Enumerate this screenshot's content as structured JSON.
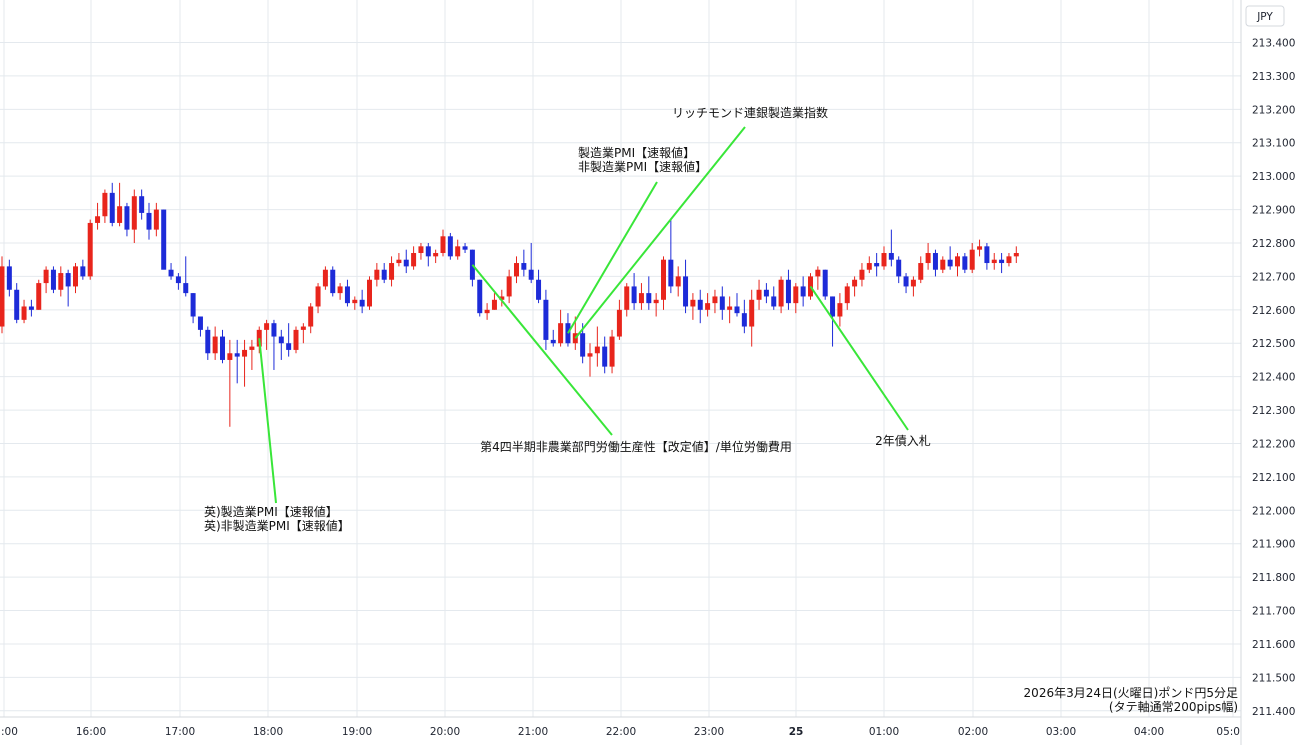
{
  "chart_data": {
    "type": "candlestick",
    "interval": "5分足",
    "currency_label": "JPY",
    "footer_lines": [
      "2026年3月24日(火曜日)ポンド円5分足",
      "(タテ軸通常200pips幅)"
    ],
    "ylim": [
      211.4,
      213.45
    ],
    "y_ticks": [
      "213.400",
      "213.300",
      "213.200",
      "213.100",
      "213.000",
      "212.900",
      "212.800",
      "212.700",
      "212.600",
      "212.500",
      "212.400",
      "212.300",
      "212.200",
      "212.100",
      "212.000",
      "211.900",
      "211.800",
      "211.700",
      "211.600",
      "211.500",
      "211.400"
    ],
    "x_ticks": [
      ":00",
      "16:00",
      "17:00",
      "18:00",
      "19:00",
      "20:00",
      "21:00",
      "22:00",
      "23:00",
      "25",
      "01:00",
      "02:00",
      "03:00",
      "04:00",
      "05:0"
    ],
    "bull_color": "#e8251c",
    "bear_color": "#1d2bd8",
    "grid_color": "#e4e9ee",
    "annotation_color": "#39e639",
    "grid": true,
    "annotations": [
      {
        "lines": [
          "英)製造業PMI【速報値】",
          "英)非製造業PMI【速報値】"
        ],
        "at_candle": 35
      },
      {
        "lines": [
          "第4四半期非農業部門労働生産性【改定値】/単位労働費用"
        ],
        "at_candle": 64
      },
      {
        "lines": [
          "製造業PMI【速報値】",
          "非製造業PMI【速報値】"
        ],
        "at_candle": 77
      },
      {
        "lines": [
          "リッチモンド連銀製造業指数"
        ],
        "at_candle": 78
      },
      {
        "lines": [
          "2年債入札"
        ],
        "at_candle": 110
      }
    ],
    "candles_ohlc": [
      [
        212.55,
        212.76,
        212.53,
        212.73
      ],
      [
        212.73,
        212.75,
        212.64,
        212.66
      ],
      [
        212.66,
        212.68,
        212.56,
        212.57
      ],
      [
        212.57,
        212.63,
        212.56,
        212.61
      ],
      [
        212.61,
        212.63,
        212.58,
        212.6
      ],
      [
        212.6,
        212.69,
        212.6,
        212.68
      ],
      [
        212.68,
        212.73,
        212.65,
        212.72
      ],
      [
        212.72,
        212.73,
        212.65,
        212.66
      ],
      [
        212.66,
        212.73,
        212.64,
        212.71
      ],
      [
        212.71,
        212.72,
        212.61,
        212.67
      ],
      [
        212.67,
        212.74,
        212.65,
        212.73
      ],
      [
        212.73,
        212.75,
        212.69,
        212.7
      ],
      [
        212.7,
        212.87,
        212.69,
        212.86
      ],
      [
        212.86,
        212.92,
        212.84,
        212.88
      ],
      [
        212.88,
        212.96,
        212.86,
        212.95
      ],
      [
        212.95,
        212.98,
        212.85,
        212.86
      ],
      [
        212.86,
        212.98,
        212.85,
        212.91
      ],
      [
        212.91,
        212.92,
        212.82,
        212.84
      ],
      [
        212.84,
        212.96,
        212.8,
        212.94
      ],
      [
        212.94,
        212.96,
        212.87,
        212.89
      ],
      [
        212.89,
        212.92,
        212.81,
        212.84
      ],
      [
        212.84,
        212.92,
        212.82,
        212.9
      ],
      [
        212.9,
        212.9,
        212.73,
        212.72
      ],
      [
        212.72,
        212.74,
        212.69,
        212.7
      ],
      [
        212.7,
        212.71,
        212.66,
        212.68
      ],
      [
        212.68,
        212.76,
        212.64,
        212.65
      ],
      [
        212.65,
        212.65,
        212.56,
        212.58
      ],
      [
        212.58,
        212.58,
        212.52,
        212.54
      ],
      [
        212.54,
        212.55,
        212.45,
        212.47
      ],
      [
        212.47,
        212.55,
        212.45,
        212.52
      ],
      [
        212.52,
        212.54,
        212.44,
        212.45
      ],
      [
        212.45,
        212.51,
        212.25,
        212.47
      ],
      [
        212.47,
        212.51,
        212.38,
        212.46
      ],
      [
        212.46,
        212.51,
        212.37,
        212.48
      ],
      [
        212.48,
        212.51,
        212.42,
        212.49
      ],
      [
        212.49,
        212.55,
        212.47,
        212.54
      ],
      [
        212.54,
        212.57,
        212.48,
        212.56
      ],
      [
        212.56,
        212.57,
        212.42,
        212.52
      ],
      [
        212.52,
        212.54,
        212.45,
        212.5
      ],
      [
        212.5,
        212.56,
        212.46,
        212.48
      ],
      [
        212.48,
        212.55,
        212.47,
        212.54
      ],
      [
        212.54,
        212.56,
        212.5,
        212.55
      ],
      [
        212.55,
        212.62,
        212.53,
        212.61
      ],
      [
        212.61,
        212.68,
        212.59,
        212.67
      ],
      [
        212.67,
        212.73,
        212.66,
        212.72
      ],
      [
        212.72,
        212.73,
        212.64,
        212.65
      ],
      [
        212.65,
        212.68,
        212.63,
        212.67
      ],
      [
        212.67,
        212.69,
        212.61,
        212.62
      ],
      [
        212.62,
        212.64,
        212.6,
        212.63
      ],
      [
        212.63,
        212.66,
        212.59,
        212.61
      ],
      [
        212.61,
        212.7,
        212.6,
        212.69
      ],
      [
        212.69,
        212.74,
        212.67,
        212.72
      ],
      [
        212.72,
        212.74,
        212.68,
        212.69
      ],
      [
        212.69,
        212.76,
        212.67,
        212.74
      ],
      [
        212.74,
        212.77,
        212.73,
        212.75
      ],
      [
        212.75,
        212.78,
        212.71,
        212.73
      ],
      [
        212.73,
        212.79,
        212.72,
        212.77
      ],
      [
        212.77,
        212.8,
        212.75,
        212.79
      ],
      [
        212.79,
        212.8,
        212.73,
        212.76
      ],
      [
        212.76,
        212.78,
        212.74,
        212.77
      ],
      [
        212.77,
        212.84,
        212.76,
        212.82
      ],
      [
        212.82,
        212.83,
        212.75,
        212.76
      ],
      [
        212.76,
        212.81,
        212.75,
        212.79
      ],
      [
        212.79,
        212.8,
        212.77,
        212.78
      ],
      [
        212.78,
        212.78,
        212.67,
        212.69
      ],
      [
        212.69,
        212.69,
        212.58,
        212.59
      ],
      [
        212.59,
        212.62,
        212.57,
        212.6
      ],
      [
        212.6,
        212.65,
        212.6,
        212.63
      ],
      [
        212.63,
        212.66,
        212.61,
        212.64
      ],
      [
        212.64,
        212.72,
        212.62,
        212.7
      ],
      [
        212.7,
        212.76,
        212.68,
        212.74
      ],
      [
        212.74,
        212.78,
        212.7,
        212.72
      ],
      [
        212.72,
        212.8,
        212.68,
        212.69
      ],
      [
        212.69,
        212.72,
        212.62,
        212.63
      ],
      [
        212.63,
        212.66,
        212.48,
        212.51
      ],
      [
        212.51,
        212.54,
        212.49,
        212.5
      ],
      [
        212.5,
        212.6,
        212.49,
        212.56
      ],
      [
        212.56,
        212.59,
        212.49,
        212.5
      ],
      [
        212.5,
        212.58,
        212.48,
        212.53
      ],
      [
        212.53,
        212.56,
        212.44,
        212.46
      ],
      [
        212.46,
        212.5,
        212.4,
        212.47
      ],
      [
        212.47,
        212.55,
        212.43,
        212.49
      ],
      [
        212.49,
        212.52,
        212.41,
        212.43
      ],
      [
        212.43,
        212.54,
        212.41,
        212.52
      ],
      [
        212.52,
        212.63,
        212.51,
        212.6
      ],
      [
        212.6,
        212.68,
        212.58,
        212.67
      ],
      [
        212.67,
        212.71,
        212.6,
        212.62
      ],
      [
        212.62,
        212.68,
        212.6,
        212.65
      ],
      [
        212.65,
        212.7,
        212.6,
        212.62
      ],
      [
        212.62,
        212.65,
        212.58,
        212.63
      ],
      [
        212.63,
        212.76,
        212.6,
        212.75
      ],
      [
        212.75,
        212.87,
        212.65,
        212.67
      ],
      [
        212.67,
        212.73,
        212.64,
        212.7
      ],
      [
        212.7,
        212.75,
        212.59,
        212.61
      ],
      [
        212.61,
        212.65,
        212.57,
        212.63
      ],
      [
        212.63,
        212.66,
        212.56,
        212.6
      ],
      [
        212.6,
        212.65,
        212.58,
        212.62
      ],
      [
        212.62,
        212.66,
        212.59,
        212.64
      ],
      [
        212.64,
        212.67,
        212.57,
        212.6
      ],
      [
        212.6,
        212.64,
        212.56,
        212.61
      ],
      [
        212.61,
        212.65,
        212.58,
        212.59
      ],
      [
        212.59,
        212.63,
        212.53,
        212.55
      ],
      [
        212.55,
        212.66,
        212.49,
        212.63
      ],
      [
        212.63,
        212.69,
        212.6,
        212.66
      ],
      [
        212.66,
        212.68,
        212.62,
        212.64
      ],
      [
        212.64,
        212.67,
        212.6,
        212.61
      ],
      [
        212.61,
        212.7,
        212.59,
        212.69
      ],
      [
        212.69,
        212.72,
        212.6,
        212.62
      ],
      [
        212.62,
        212.68,
        212.59,
        212.67
      ],
      [
        212.67,
        212.7,
        212.61,
        212.64
      ],
      [
        212.64,
        212.71,
        212.63,
        212.7
      ],
      [
        212.7,
        212.73,
        212.66,
        212.72
      ],
      [
        212.72,
        212.72,
        212.63,
        212.64
      ],
      [
        212.64,
        212.64,
        212.49,
        212.58
      ],
      [
        212.58,
        212.65,
        212.55,
        212.62
      ],
      [
        212.62,
        212.68,
        212.6,
        212.67
      ],
      [
        212.67,
        212.7,
        212.64,
        212.69
      ],
      [
        212.69,
        212.74,
        212.67,
        212.72
      ],
      [
        212.72,
        212.76,
        212.71,
        212.74
      ],
      [
        212.74,
        212.77,
        212.7,
        212.73
      ],
      [
        212.73,
        212.79,
        212.72,
        212.77
      ],
      [
        212.77,
        212.84,
        212.73,
        212.75
      ],
      [
        212.75,
        212.76,
        212.68,
        212.7
      ],
      [
        212.7,
        212.71,
        212.65,
        212.67
      ],
      [
        212.67,
        212.7,
        212.64,
        212.69
      ],
      [
        212.69,
        212.76,
        212.68,
        212.74
      ],
      [
        212.74,
        212.8,
        212.72,
        212.77
      ],
      [
        212.77,
        212.78,
        212.7,
        212.72
      ],
      [
        212.72,
        212.76,
        212.71,
        212.75
      ],
      [
        212.75,
        212.79,
        212.72,
        212.73
      ],
      [
        212.73,
        212.77,
        212.7,
        212.76
      ],
      [
        212.76,
        212.77,
        212.71,
        212.72
      ],
      [
        212.72,
        212.8,
        212.71,
        212.78
      ],
      [
        212.78,
        212.81,
        212.76,
        212.79
      ],
      [
        212.79,
        212.8,
        212.72,
        212.74
      ],
      [
        212.74,
        212.77,
        212.72,
        212.75
      ],
      [
        212.75,
        212.77,
        212.71,
        212.74
      ],
      [
        212.74,
        212.77,
        212.73,
        212.76
      ],
      [
        212.76,
        212.79,
        212.74,
        212.77
      ]
    ]
  }
}
